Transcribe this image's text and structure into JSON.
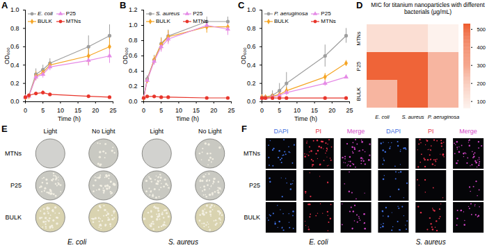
{
  "chart_data": [
    {
      "panel": "A",
      "type": "line",
      "x_label": "Time (h)",
      "y_label": "OD₆₀₀",
      "x": [
        0,
        1,
        3,
        5,
        7,
        18,
        24
      ],
      "xlim": [
        0,
        25
      ],
      "xticks": [
        0,
        5,
        10,
        15,
        20,
        25
      ],
      "ylim": [
        0,
        1
      ],
      "yticks": [
        {
          "value": 0,
          "label": "0.0"
        },
        0.2,
        0.4,
        0.6,
        0.8,
        {
          "value": 1,
          "label": "1.0"
        }
      ],
      "grid": false,
      "legend": "top-left",
      "series": [
        {
          "name": "E. coli",
          "color": "#9e9e9e",
          "marker": "circle",
          "values": [
            0.05,
            0.07,
            0.3,
            0.35,
            0.42,
            0.6,
            0.72
          ],
          "errors": [
            0.01,
            0.02,
            0.06,
            0.05,
            0.05,
            0.12,
            0.12
          ]
        },
        {
          "name": "BULK",
          "color": "#f5a524",
          "marker": "diamond",
          "values": [
            0.05,
            0.06,
            0.28,
            0.32,
            0.4,
            0.5,
            0.6
          ],
          "errors": [
            0.01,
            0.02,
            0.05,
            0.04,
            0.04,
            0.1,
            0.1
          ]
        },
        {
          "name": "P25",
          "color": "#e58ae6",
          "marker": "triangle",
          "values": [
            0.05,
            0.06,
            0.27,
            0.3,
            0.38,
            0.45,
            0.5
          ],
          "errors": [
            0.01,
            0.02,
            0.04,
            0.04,
            0.04,
            0.06,
            0.08
          ]
        },
        {
          "name": "MTNs",
          "color": "#e8352b",
          "marker": "circle",
          "values": [
            0.05,
            0.07,
            0.09,
            0.1,
            0.08,
            0.06,
            0.05
          ],
          "errors": [
            0.01,
            0.01,
            0.01,
            0.02,
            0.01,
            0.01,
            0.01
          ]
        }
      ]
    },
    {
      "panel": "B",
      "type": "line",
      "x_label": "Time (h)",
      "y_label": "OD₆₀₀",
      "x": [
        0,
        1,
        3,
        5,
        7,
        18,
        24
      ],
      "xlim": [
        0,
        25
      ],
      "xticks": [
        0,
        5,
        10,
        15,
        20,
        25
      ],
      "ylim": [
        0,
        1.2
      ],
      "yticks": [
        {
          "value": 0,
          "label": "0.0"
        },
        0.2,
        0.4,
        0.6,
        0.8,
        {
          "value": 1,
          "label": "1.0"
        },
        1.2
      ],
      "grid": false,
      "legend": "top-left",
      "series": [
        {
          "name": "S. aureus",
          "color": "#9e9e9e",
          "marker": "circle",
          "values": [
            0.05,
            0.3,
            0.55,
            0.76,
            0.86,
            1.05,
            1.05
          ],
          "errors": [
            0.01,
            0.04,
            0.06,
            0.08,
            0.08,
            0.06,
            0.06
          ]
        },
        {
          "name": "BULK",
          "color": "#f5a524",
          "marker": "diamond",
          "values": [
            0.05,
            0.28,
            0.55,
            0.75,
            0.85,
            0.98,
            0.98
          ],
          "errors": [
            0.01,
            0.04,
            0.05,
            0.08,
            0.08,
            0.08,
            0.08
          ]
        },
        {
          "name": "P25",
          "color": "#e58ae6",
          "marker": "triangle",
          "values": [
            0.05,
            0.28,
            0.53,
            0.72,
            0.82,
            1.0,
            0.95
          ],
          "errors": [
            0.01,
            0.04,
            0.05,
            0.07,
            0.07,
            0.06,
            0.08
          ]
        },
        {
          "name": "MTNs",
          "color": "#e8352b",
          "marker": "circle",
          "values": [
            0.05,
            0.07,
            0.07,
            0.06,
            0.06,
            0.05,
            0.05
          ],
          "errors": [
            0.01,
            0.01,
            0.01,
            0.01,
            0.01,
            0.01,
            0.01
          ]
        }
      ]
    },
    {
      "panel": "C",
      "type": "line",
      "x_label": "Time (h)",
      "y_label": "OD₆₀₀",
      "x": [
        0,
        1,
        3,
        5,
        7,
        18,
        24
      ],
      "xlim": [
        0,
        25
      ],
      "xticks": [
        0,
        5,
        10,
        15,
        20,
        25
      ],
      "ylim": [
        0,
        1
      ],
      "yticks": [
        {
          "value": 0,
          "label": "0.0"
        },
        0.2,
        0.4,
        0.6,
        0.8,
        {
          "value": 1,
          "label": "1.0"
        }
      ],
      "grid": false,
      "legend": "top-left",
      "series": [
        {
          "name": "P. aeruginosa",
          "color": "#9e9e9e",
          "marker": "circle",
          "values": [
            0.05,
            0.05,
            0.07,
            0.12,
            0.2,
            0.5,
            0.72
          ],
          "errors": [
            0.01,
            0.02,
            0.05,
            0.08,
            0.12,
            0.12,
            0.08
          ]
        },
        {
          "name": "BULK",
          "color": "#f5a524",
          "marker": "diamond",
          "values": [
            0.05,
            0.05,
            0.06,
            0.08,
            0.12,
            0.27,
            0.42
          ],
          "errors": [
            0.01,
            0.01,
            0.02,
            0.03,
            0.04,
            0.04,
            0.03
          ]
        },
        {
          "name": "P25",
          "color": "#e58ae6",
          "marker": "triangle",
          "values": [
            0.04,
            0.04,
            0.05,
            0.07,
            0.1,
            0.2,
            0.27
          ],
          "errors": [
            0.01,
            0.01,
            0.01,
            0.02,
            0.03,
            0.03,
            0.02
          ]
        },
        {
          "name": "MTNs",
          "color": "#e8352b",
          "marker": "circle",
          "values": [
            0.04,
            0.04,
            0.04,
            0.04,
            0.04,
            0.04,
            0.04
          ],
          "errors": [
            0.01,
            0.01,
            0.01,
            0.01,
            0.01,
            0.01,
            0.01
          ]
        }
      ]
    },
    {
      "panel": "D",
      "type": "heatmap",
      "title": "MIC for titanium nanoparticles with different bacterials (μg/mL)",
      "columns": [
        "E. coli",
        "S. aureus",
        "P. aeruginosa"
      ],
      "rows": [
        "MTNs",
        "P25",
        "BULK"
      ],
      "values": [
        [
          125,
          125,
          62.5
        ],
        [
          500,
          500,
          250
        ],
        [
          250,
          500,
          250
        ]
      ],
      "clim": [
        60,
        530
      ],
      "cticks": [
        100,
        200,
        300,
        400,
        500
      ]
    }
  ],
  "images": [
    {
      "panel": "E",
      "groups": [
        "E. coli",
        "S. aureus"
      ],
      "columns": [
        "Light",
        "No Light"
      ],
      "rows": [
        "MTNs",
        "P25",
        "BULK"
      ]
    },
    {
      "panel": "F",
      "groups": [
        "E. coli",
        "S. aureus"
      ],
      "columns": [
        "DAPI",
        "PI",
        "Merge"
      ],
      "rows": [
        "MTNs",
        "P25",
        "BULK"
      ]
    }
  ]
}
